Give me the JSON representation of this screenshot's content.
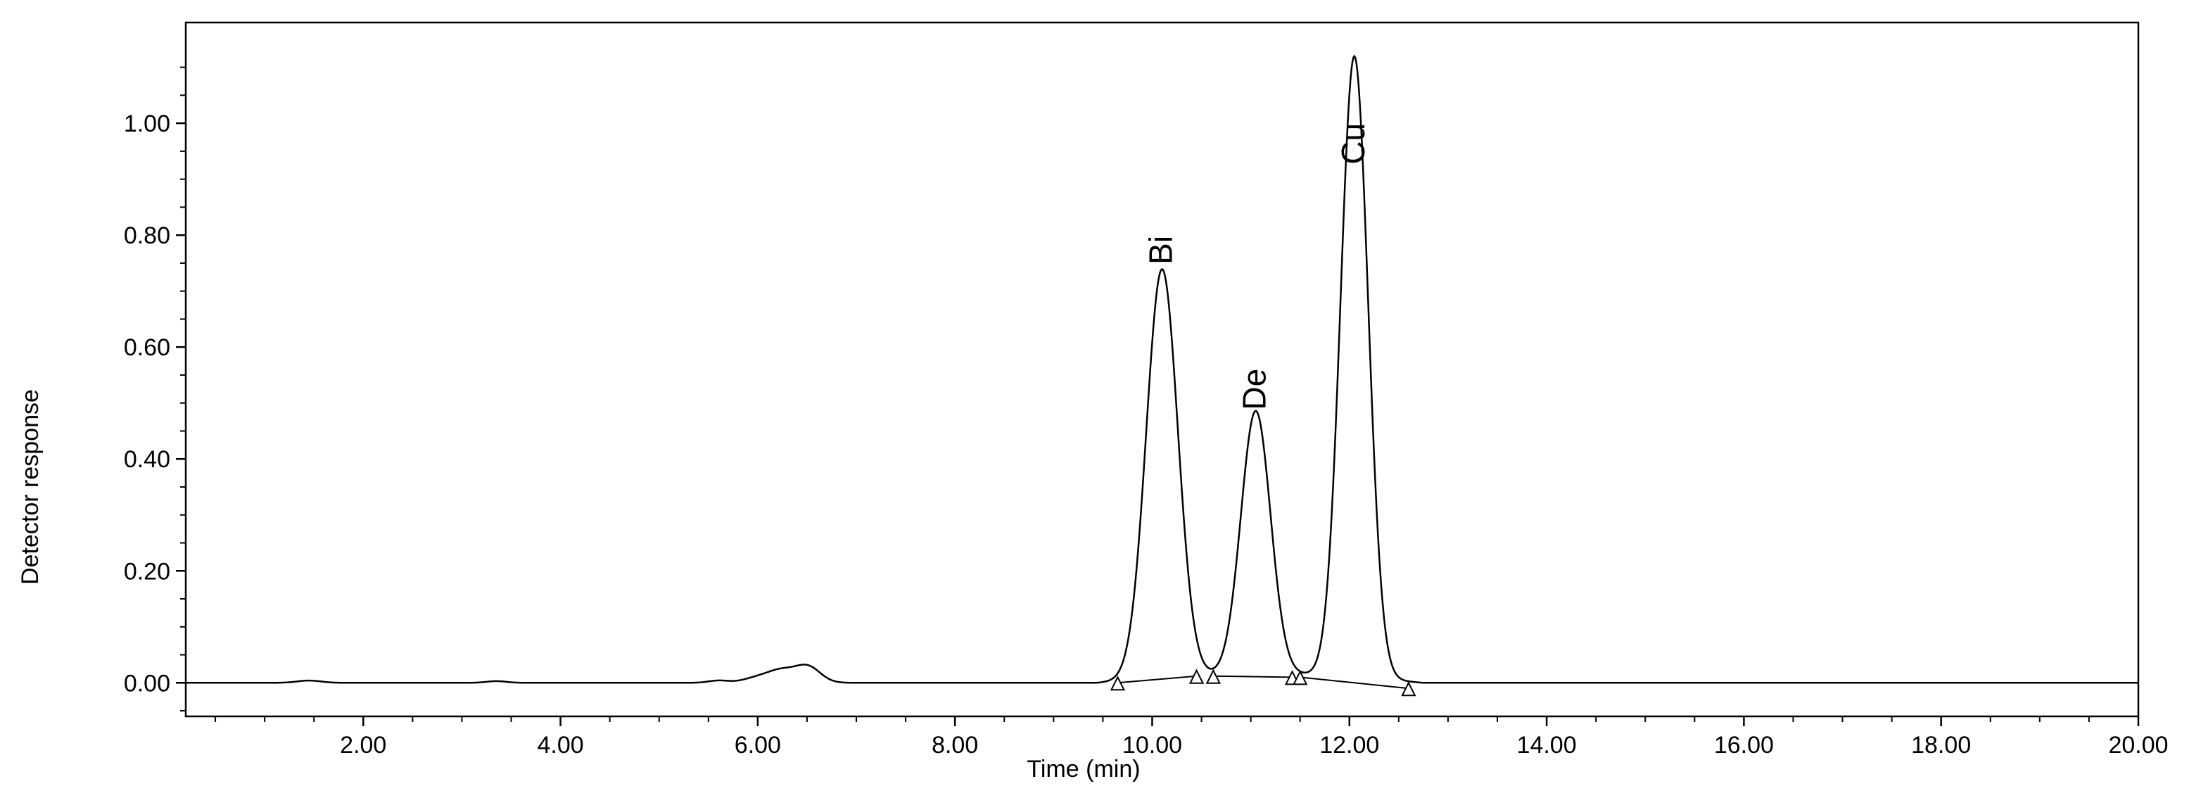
{
  "chart_data": {
    "type": "line",
    "title": "",
    "xlabel": "Time (min)",
    "ylabel": "Detector response",
    "xlim": [
      0.2,
      20.0
    ],
    "ylim": [
      -0.06,
      1.18
    ],
    "grid": false,
    "legend": "none",
    "x_ticks": [
      {
        "value": 2.0,
        "label": "2.00"
      },
      {
        "value": 4.0,
        "label": "4.00"
      },
      {
        "value": 6.0,
        "label": "6.00"
      },
      {
        "value": 8.0,
        "label": "8.00"
      },
      {
        "value": 10.0,
        "label": "10.00"
      },
      {
        "value": 12.0,
        "label": "12.00"
      },
      {
        "value": 14.0,
        "label": "14.00"
      },
      {
        "value": 16.0,
        "label": "16.00"
      },
      {
        "value": 18.0,
        "label": "18.00"
      },
      {
        "value": 20.0,
        "label": "20.00"
      }
    ],
    "y_ticks": [
      {
        "value": 0.0,
        "label": "0.00"
      },
      {
        "value": 0.2,
        "label": "0.20"
      },
      {
        "value": 0.4,
        "label": "0.40"
      },
      {
        "value": 0.6,
        "label": "0.60"
      },
      {
        "value": 0.8,
        "label": "0.80"
      },
      {
        "value": 1.0,
        "label": "1.00"
      }
    ],
    "series": [
      {
        "color": "#000000",
        "baseline_minor_bumps": [
          {
            "center": 1.45,
            "height": 0.004,
            "width": 0.12
          },
          {
            "center": 3.35,
            "height": 0.003,
            "width": 0.1
          },
          {
            "center": 5.6,
            "height": 0.004,
            "width": 0.1
          },
          {
            "center": 6.05,
            "height": 0.012,
            "width": 0.16
          },
          {
            "center": 6.25,
            "height": 0.016,
            "width": 0.12
          },
          {
            "center": 6.5,
            "height": 0.03,
            "width": 0.13
          }
        ],
        "peaks": [
          {
            "label": "Bi",
            "retention_time": 10.1,
            "height": 0.73,
            "width": 0.16
          },
          {
            "label": "De",
            "retention_time": 11.05,
            "height": 0.47,
            "width": 0.15
          },
          {
            "label": "Cu",
            "retention_time": 12.05,
            "height": 1.11,
            "width": 0.14
          }
        ]
      }
    ],
    "integration_baselines": [
      {
        "start": [
          9.65,
          0.0
        ],
        "end": [
          10.45,
          0.012
        ]
      },
      {
        "start": [
          10.62,
          0.012
        ],
        "end": [
          11.42,
          0.01
        ]
      },
      {
        "start": [
          11.5,
          0.01
        ],
        "end": [
          12.6,
          -0.01
        ]
      }
    ],
    "integration_markers": [
      {
        "x": 9.65,
        "y": 0.0
      },
      {
        "x": 10.45,
        "y": 0.012
      },
      {
        "x": 10.62,
        "y": 0.012
      },
      {
        "x": 11.42,
        "y": 0.01
      },
      {
        "x": 11.5,
        "y": 0.01
      },
      {
        "x": 12.6,
        "y": -0.01
      }
    ]
  }
}
